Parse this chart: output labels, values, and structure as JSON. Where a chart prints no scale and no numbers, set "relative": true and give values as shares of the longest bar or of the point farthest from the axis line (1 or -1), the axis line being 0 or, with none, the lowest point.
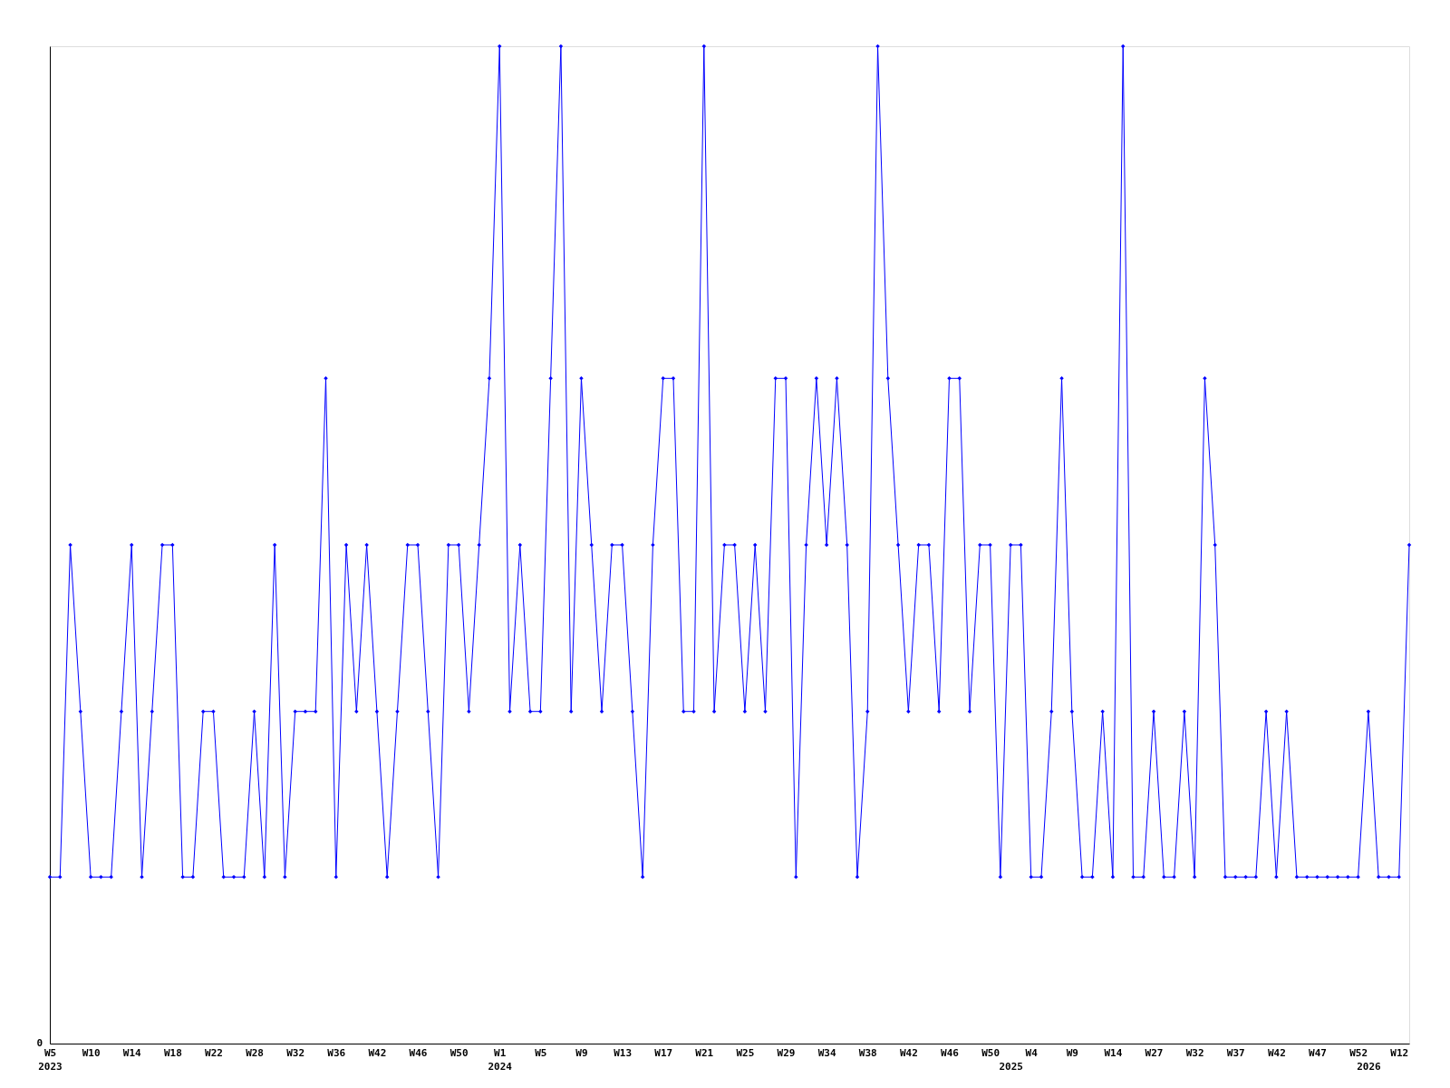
{
  "chart_data": {
    "type": "line",
    "relative": true,
    "marker": "diamond",
    "line_style": "solid",
    "grid": false,
    "legend": false,
    "annotations": [
      "0"
    ],
    "categories": [
      "W5\n2023",
      null,
      null,
      null,
      "W10",
      null,
      null,
      null,
      "W14",
      null,
      null,
      null,
      "W18",
      null,
      null,
      null,
      "W22",
      null,
      null,
      null,
      "W28",
      null,
      null,
      null,
      "W32",
      null,
      null,
      null,
      "W36",
      null,
      null,
      null,
      "W42",
      null,
      null,
      null,
      "W46",
      null,
      null,
      null,
      "W50",
      null,
      null,
      null,
      "W1\n2024",
      null,
      null,
      null,
      "W5",
      null,
      null,
      null,
      "W9",
      null,
      null,
      null,
      "W13",
      null,
      null,
      null,
      "W17",
      null,
      null,
      null,
      "W21",
      null,
      null,
      null,
      "W25",
      null,
      null,
      null,
      "W29",
      null,
      null,
      null,
      "W34",
      null,
      null,
      null,
      "W38",
      null,
      null,
      null,
      "W42",
      null,
      null,
      null,
      "W46",
      null,
      null,
      null,
      "W50",
      null,
      "\n2025",
      null,
      "W4",
      null,
      null,
      null,
      "W9",
      null,
      null,
      null,
      "W14",
      null,
      null,
      null,
      "W27",
      null,
      null,
      null,
      "W32",
      null,
      null,
      null,
      "W37",
      null,
      null,
      null,
      "W42",
      null,
      null,
      null,
      "W47",
      null,
      null,
      null,
      "W52",
      "\n2026",
      null,
      null,
      "W12",
      null
    ],
    "series": [
      {
        "color": "#0000ff",
        "values": [
          0.167,
          0.167,
          0.5,
          0.333,
          0.167,
          0.167,
          0.167,
          0.333,
          0.5,
          0.167,
          0.333,
          0.5,
          0.5,
          0.167,
          0.167,
          0.333,
          0.333,
          0.167,
          0.167,
          0.167,
          0.333,
          0.167,
          0.5,
          0.167,
          0.333,
          0.333,
          0.333,
          0.667,
          0.167,
          0.5,
          0.333,
          0.5,
          0.333,
          0.167,
          0.333,
          0.5,
          0.5,
          0.333,
          0.167,
          0.5,
          0.5,
          0.333,
          0.5,
          0.667,
          1,
          0.333,
          0.5,
          0.333,
          0.333,
          0.667,
          1,
          0.333,
          0.667,
          0.5,
          0.333,
          0.5,
          0.5,
          0.333,
          0.167,
          0.5,
          0.667,
          0.667,
          0.333,
          0.333,
          1,
          0.333,
          0.5,
          0.5,
          0.333,
          0.5,
          0.333,
          0.667,
          0.667,
          0.167,
          0.5,
          0.667,
          0.5,
          0.667,
          0.5,
          0.167,
          0.333,
          1,
          0.667,
          0.5,
          0.333,
          0.5,
          0.5,
          0.333,
          0.667,
          0.667,
          0.333,
          0.5,
          0.5,
          0.167,
          0.5,
          0.5,
          0.167,
          0.167,
          0.333,
          0.667,
          0.333,
          0.167,
          0.167,
          0.333,
          0.167,
          1,
          0.167,
          0.167,
          0.333,
          0.167,
          0.167,
          0.333,
          0.167,
          0.667,
          0.5,
          0.167,
          0.167,
          0.167,
          0.167,
          0.333,
          0.167,
          0.333,
          0.167,
          0.167,
          0.167,
          0.167,
          0.167,
          0.167,
          0.167,
          0.333,
          0.167,
          0.167,
          0.167,
          0.5
        ]
      }
    ]
  }
}
